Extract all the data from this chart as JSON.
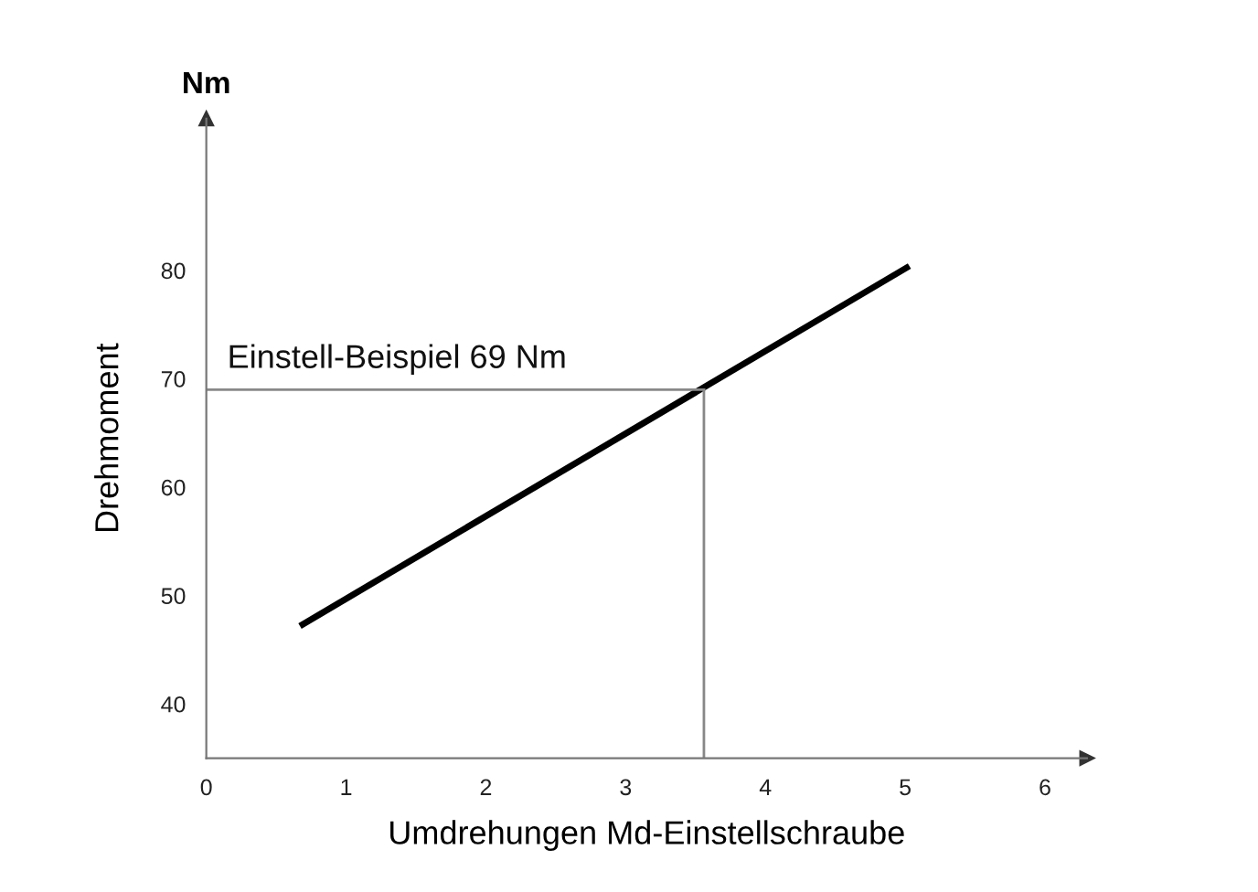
{
  "chart_data": {
    "type": "line",
    "xlabel": "Umdrehungen Md-Einstellschraube",
    "ylabel": "Drehmoment",
    "annotations": [
      "Nm"
    ],
    "series": [
      {
        "color": "#000000",
        "x": [
          0.67,
          5.03
        ],
        "values": [
          47.2,
          80.4
        ]
      }
    ],
    "xlim": [
      0,
      6.3
    ],
    "ylim": [
      35,
      94
    ],
    "xticks": [
      0,
      1,
      2,
      3,
      4,
      5,
      6
    ],
    "yticks": [
      40,
      50,
      60,
      70,
      80
    ],
    "ref_lines": [
      {
        "axis": "y",
        "value": 69,
        "label": "Einstell-Beispiel 69 Nm",
        "color": "#888888"
      },
      {
        "axis": "x",
        "value": 3.56,
        "color": "#888888"
      }
    ],
    "grid": false,
    "marker": "none",
    "line_style": "solid"
  }
}
